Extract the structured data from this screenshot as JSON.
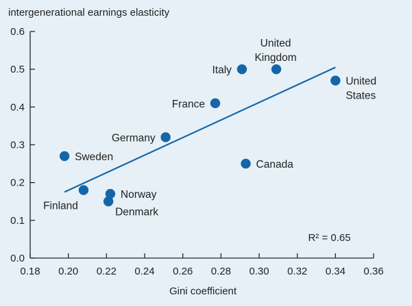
{
  "chart_data": {
    "type": "scatter",
    "title": "",
    "ylabel": "intergenerational earnings elasticity",
    "xlabel": "Gini coefficient",
    "xlim": [
      0.18,
      0.36
    ],
    "ylim": [
      0.0,
      0.6
    ],
    "xticks": [
      "0.18",
      "0.20",
      "0.22",
      "0.24",
      "0.26",
      "0.28",
      "0.30",
      "0.32",
      "0.34",
      "0.36"
    ],
    "yticks": [
      "0.0",
      "0.1",
      "0.2",
      "0.3",
      "0.4",
      "0.5",
      "0.6"
    ],
    "grid": false,
    "points": [
      {
        "label": [
          "Sweden"
        ],
        "x": 0.198,
        "y": 0.27,
        "anchor": "right"
      },
      {
        "label": [
          "Finland"
        ],
        "x": 0.208,
        "y": 0.18,
        "anchor": "below-left"
      },
      {
        "label": [
          "Norway"
        ],
        "x": 0.222,
        "y": 0.17,
        "anchor": "right"
      },
      {
        "label": [
          "Denmark"
        ],
        "x": 0.221,
        "y": 0.15,
        "anchor": "below-right"
      },
      {
        "label": [
          "Germany"
        ],
        "x": 0.251,
        "y": 0.32,
        "anchor": "left"
      },
      {
        "label": [
          "France"
        ],
        "x": 0.277,
        "y": 0.41,
        "anchor": "left"
      },
      {
        "label": [
          "Italy"
        ],
        "x": 0.291,
        "y": 0.5,
        "anchor": "left"
      },
      {
        "label": [
          "Canada"
        ],
        "x": 0.293,
        "y": 0.25,
        "anchor": "right"
      },
      {
        "label": [
          "United",
          "Kingdom"
        ],
        "x": 0.309,
        "y": 0.5,
        "anchor": "above"
      },
      {
        "label": [
          "United",
          "States"
        ],
        "x": 0.34,
        "y": 0.47,
        "anchor": "right"
      }
    ],
    "trendline": {
      "x": [
        0.198,
        0.34
      ],
      "y": [
        0.175,
        0.505
      ]
    },
    "annotation": {
      "text": "R² = 0.65",
      "x": 0.348,
      "y": 0.045
    },
    "colors": {
      "point": "#1566a8",
      "line": "#1566a8",
      "axis": "#222222",
      "background": "#e7f0f6"
    }
  }
}
